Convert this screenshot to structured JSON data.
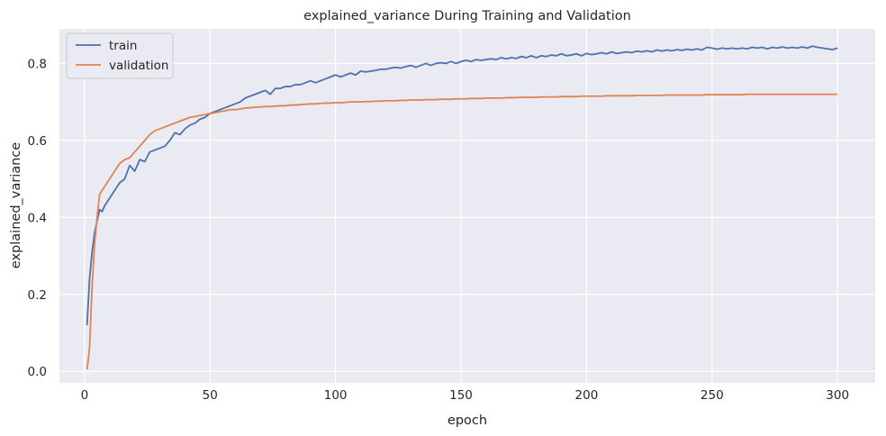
{
  "chart_data": {
    "type": "line",
    "title": "explained_variance During Training and Validation",
    "xlabel": "epoch",
    "ylabel": "explained_variance",
    "xlim": [
      -10,
      315
    ],
    "ylim": [
      -0.03,
      0.89
    ],
    "xticks": [
      0,
      50,
      100,
      150,
      200,
      250,
      300
    ],
    "yticks": [
      0.0,
      0.2,
      0.4,
      0.6,
      0.8
    ],
    "ytick_labels": [
      "0.0",
      "0.2",
      "0.4",
      "0.6",
      "0.8"
    ],
    "grid": true,
    "legend_position": "top-left",
    "background_color": "#eaeaf2",
    "x": [
      1,
      2,
      3,
      4,
      5,
      6,
      7,
      8,
      9,
      10,
      12,
      14,
      16,
      18,
      20,
      22,
      24,
      26,
      28,
      30,
      32,
      34,
      36,
      38,
      40,
      42,
      44,
      46,
      48,
      50,
      52,
      54,
      56,
      58,
      60,
      62,
      64,
      66,
      68,
      70,
      72,
      74,
      76,
      78,
      80,
      82,
      84,
      86,
      88,
      90,
      92,
      94,
      96,
      98,
      100,
      102,
      104,
      106,
      108,
      110,
      112,
      114,
      116,
      118,
      120,
      122,
      124,
      126,
      128,
      130,
      132,
      134,
      136,
      138,
      140,
      142,
      144,
      146,
      148,
      150,
      152,
      154,
      156,
      158,
      160,
      162,
      164,
      166,
      168,
      170,
      172,
      174,
      176,
      178,
      180,
      182,
      184,
      186,
      188,
      190,
      192,
      194,
      196,
      198,
      200,
      202,
      204,
      206,
      208,
      210,
      212,
      214,
      216,
      218,
      220,
      222,
      224,
      226,
      228,
      230,
      232,
      234,
      236,
      238,
      240,
      242,
      244,
      246,
      248,
      250,
      252,
      254,
      256,
      258,
      260,
      262,
      264,
      266,
      268,
      270,
      272,
      274,
      276,
      278,
      280,
      282,
      284,
      286,
      288,
      290,
      292,
      294,
      296,
      298,
      300
    ],
    "series": [
      {
        "name": "train",
        "color": "#4c72b0",
        "values": [
          0.12,
          0.24,
          0.31,
          0.36,
          0.39,
          0.42,
          0.415,
          0.43,
          0.44,
          0.45,
          0.47,
          0.49,
          0.5,
          0.535,
          0.52,
          0.55,
          0.545,
          0.57,
          0.575,
          0.58,
          0.585,
          0.6,
          0.62,
          0.615,
          0.63,
          0.64,
          0.645,
          0.655,
          0.66,
          0.67,
          0.675,
          0.68,
          0.685,
          0.69,
          0.695,
          0.7,
          0.71,
          0.715,
          0.72,
          0.725,
          0.73,
          0.72,
          0.735,
          0.735,
          0.74,
          0.74,
          0.745,
          0.745,
          0.75,
          0.755,
          0.75,
          0.755,
          0.76,
          0.765,
          0.77,
          0.765,
          0.77,
          0.775,
          0.77,
          0.78,
          0.778,
          0.78,
          0.782,
          0.785,
          0.785,
          0.788,
          0.79,
          0.788,
          0.792,
          0.795,
          0.79,
          0.795,
          0.8,
          0.795,
          0.8,
          0.802,
          0.8,
          0.805,
          0.8,
          0.805,
          0.808,
          0.805,
          0.81,
          0.808,
          0.81,
          0.812,
          0.81,
          0.815,
          0.812,
          0.815,
          0.813,
          0.818,
          0.815,
          0.82,
          0.815,
          0.82,
          0.818,
          0.822,
          0.82,
          0.825,
          0.82,
          0.822,
          0.825,
          0.82,
          0.826,
          0.823,
          0.825,
          0.828,
          0.825,
          0.83,
          0.826,
          0.828,
          0.83,
          0.828,
          0.832,
          0.83,
          0.833,
          0.83,
          0.835,
          0.832,
          0.835,
          0.833,
          0.836,
          0.834,
          0.837,
          0.835,
          0.838,
          0.835,
          0.842,
          0.84,
          0.837,
          0.84,
          0.838,
          0.84,
          0.838,
          0.84,
          0.838,
          0.842,
          0.84,
          0.842,
          0.838,
          0.842,
          0.84,
          0.843,
          0.84,
          0.842,
          0.84,
          0.843,
          0.84,
          0.845,
          0.842,
          0.84,
          0.838,
          0.836,
          0.84
        ]
      },
      {
        "name": "validation",
        "color": "#dd8452",
        "values": [
          0.005,
          0.06,
          0.22,
          0.33,
          0.4,
          0.46,
          0.47,
          0.48,
          0.49,
          0.5,
          0.52,
          0.54,
          0.55,
          0.555,
          0.57,
          0.585,
          0.6,
          0.615,
          0.625,
          0.63,
          0.635,
          0.64,
          0.645,
          0.65,
          0.655,
          0.66,
          0.662,
          0.665,
          0.667,
          0.67,
          0.672,
          0.675,
          0.677,
          0.68,
          0.68,
          0.682,
          0.684,
          0.685,
          0.686,
          0.687,
          0.688,
          0.688,
          0.689,
          0.69,
          0.69,
          0.692,
          0.692,
          0.693,
          0.694,
          0.695,
          0.695,
          0.696,
          0.697,
          0.697,
          0.698,
          0.698,
          0.699,
          0.7,
          0.7,
          0.7,
          0.701,
          0.701,
          0.702,
          0.702,
          0.703,
          0.703,
          0.703,
          0.704,
          0.704,
          0.705,
          0.705,
          0.705,
          0.706,
          0.706,
          0.706,
          0.707,
          0.707,
          0.707,
          0.708,
          0.708,
          0.708,
          0.709,
          0.709,
          0.709,
          0.71,
          0.71,
          0.71,
          0.71,
          0.711,
          0.711,
          0.711,
          0.712,
          0.712,
          0.712,
          0.712,
          0.713,
          0.713,
          0.713,
          0.713,
          0.714,
          0.714,
          0.714,
          0.714,
          0.715,
          0.715,
          0.715,
          0.715,
          0.715,
          0.716,
          0.716,
          0.716,
          0.716,
          0.716,
          0.716,
          0.717,
          0.717,
          0.717,
          0.717,
          0.717,
          0.717,
          0.718,
          0.718,
          0.718,
          0.718,
          0.718,
          0.718,
          0.718,
          0.718,
          0.719,
          0.719,
          0.719,
          0.719,
          0.719,
          0.719,
          0.719,
          0.719,
          0.72,
          0.72,
          0.72,
          0.72,
          0.72,
          0.72,
          0.72,
          0.72,
          0.72,
          0.72,
          0.72,
          0.72,
          0.72,
          0.72,
          0.72,
          0.72,
          0.72,
          0.72,
          0.72
        ]
      }
    ]
  }
}
